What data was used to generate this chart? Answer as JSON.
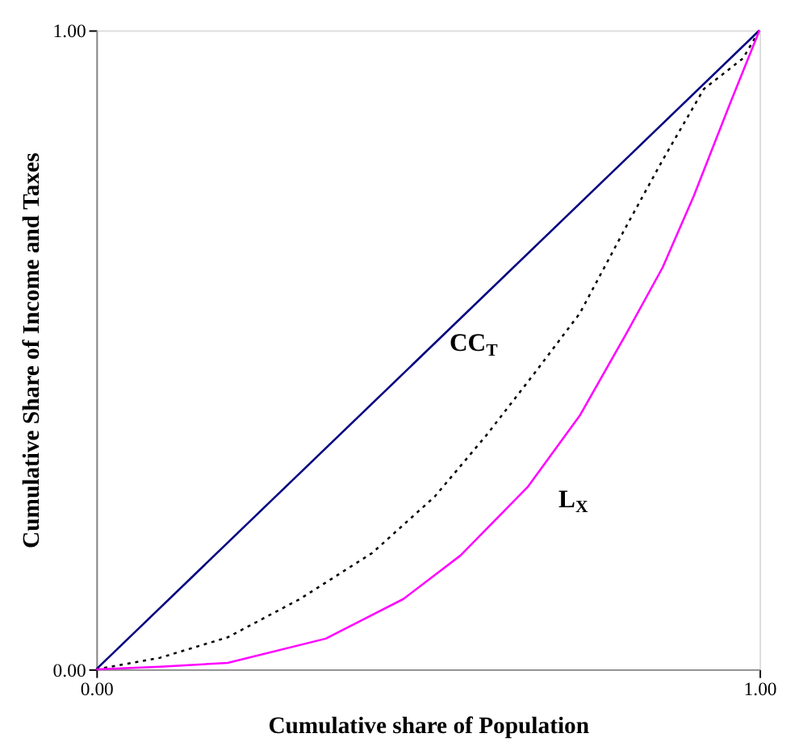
{
  "chart_data": {
    "type": "line",
    "xlabel": "Cumulative share of Population",
    "ylabel": "Cumulative Share of Income and Taxes",
    "xlim": [
      0,
      1
    ],
    "ylim": [
      0,
      1
    ],
    "xticks": [
      {
        "value": 0,
        "label": "0.00"
      },
      {
        "value": 1,
        "label": "1.00"
      }
    ],
    "yticks": [
      {
        "value": 0,
        "label": "0.00"
      },
      {
        "value": 1,
        "label": "1.00"
      }
    ],
    "legend": false,
    "marker": "none",
    "series": [
      {
        "color": "#000080",
        "line_style": "solid",
        "x": [
          0,
          1
        ],
        "values": [
          0,
          1
        ]
      },
      {
        "name": "CC$_{T}$",
        "color": "#000000",
        "line_style": "dotted",
        "x": [
          0,
          0.096,
          0.198,
          0.307,
          0.416,
          0.51,
          0.588,
          0.659,
          0.729,
          0.799,
          0.854,
          0.916,
          0.975,
          1
        ],
        "values": [
          0,
          0.018,
          0.05,
          0.11,
          0.182,
          0.27,
          0.366,
          0.461,
          0.557,
          0.693,
          0.797,
          0.908,
          0.956,
          1
        ]
      },
      {
        "name": "L$_{X}$",
        "color": "#ff00ff",
        "line_style": "solid",
        "x": [
          0,
          0.096,
          0.198,
          0.346,
          0.463,
          0.549,
          0.651,
          0.729,
          0.799,
          0.854,
          0.901,
          0.955,
          1
        ],
        "values": [
          0,
          0.004,
          0.01,
          0.048,
          0.11,
          0.178,
          0.286,
          0.397,
          0.525,
          0.629,
          0.741,
          0.884,
          1
        ]
      }
    ]
  }
}
